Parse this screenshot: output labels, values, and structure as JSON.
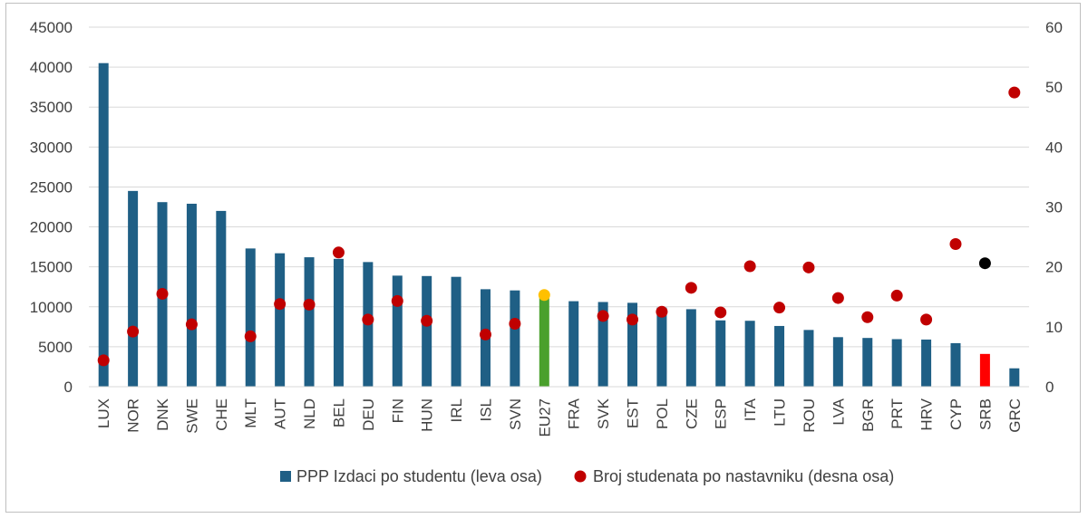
{
  "chart_data": {
    "type": "bar",
    "categories": [
      "LUX",
      "NOR",
      "DNK",
      "SWE",
      "CHE",
      "MLT",
      "AUT",
      "NLD",
      "BEL",
      "DEU",
      "FIN",
      "HUN",
      "IRL",
      "ISL",
      "SVN",
      "EU27",
      "FRA",
      "SVK",
      "EST",
      "POL",
      "CZE",
      "ESP",
      "ITA",
      "LTU",
      "ROU",
      "LVA",
      "BGR",
      "PRT",
      "HRV",
      "CYP",
      "SRB",
      "GRC"
    ],
    "series": [
      {
        "name": "PPP Izdaci po studentu (leva osa)",
        "axis": "left",
        "kind": "bar",
        "color": "#1f5f85",
        "values": [
          40500,
          24500,
          23100,
          22900,
          22000,
          17300,
          16700,
          16200,
          16000,
          15600,
          13900,
          13850,
          13750,
          12200,
          12050,
          11300,
          10700,
          10600,
          10500,
          9900,
          9700,
          8300,
          8250,
          7600,
          7100,
          6200,
          6100,
          5950,
          5900,
          5450,
          4100,
          2300
        ]
      },
      {
        "name": "Broj studenata po nastavniku (desna osa)",
        "axis": "right",
        "kind": "scatter",
        "color": "#c00000",
        "values": [
          4.4,
          9.2,
          15.5,
          10.4,
          null,
          8.4,
          13.8,
          13.7,
          22.4,
          11.2,
          14.3,
          11.0,
          null,
          8.7,
          10.5,
          15.3,
          null,
          11.8,
          11.2,
          12.5,
          16.5,
          12.4,
          20.1,
          13.2,
          19.9,
          14.8,
          11.6,
          15.2,
          11.2,
          23.8,
          20.6,
          49.1
        ]
      }
    ],
    "highlight_bar_colors": {
      "EU27": "#4aa02c",
      "SRB": "#ff0000"
    },
    "highlight_dot_colors": {
      "EU27": "#ffc000",
      "SRB": "#000000"
    },
    "y_left": {
      "min": 0,
      "max": 45000,
      "step": 5000
    },
    "y_right": {
      "min": 0,
      "max": 60,
      "step": 10
    },
    "grid": true,
    "legend_position": "bottom"
  }
}
